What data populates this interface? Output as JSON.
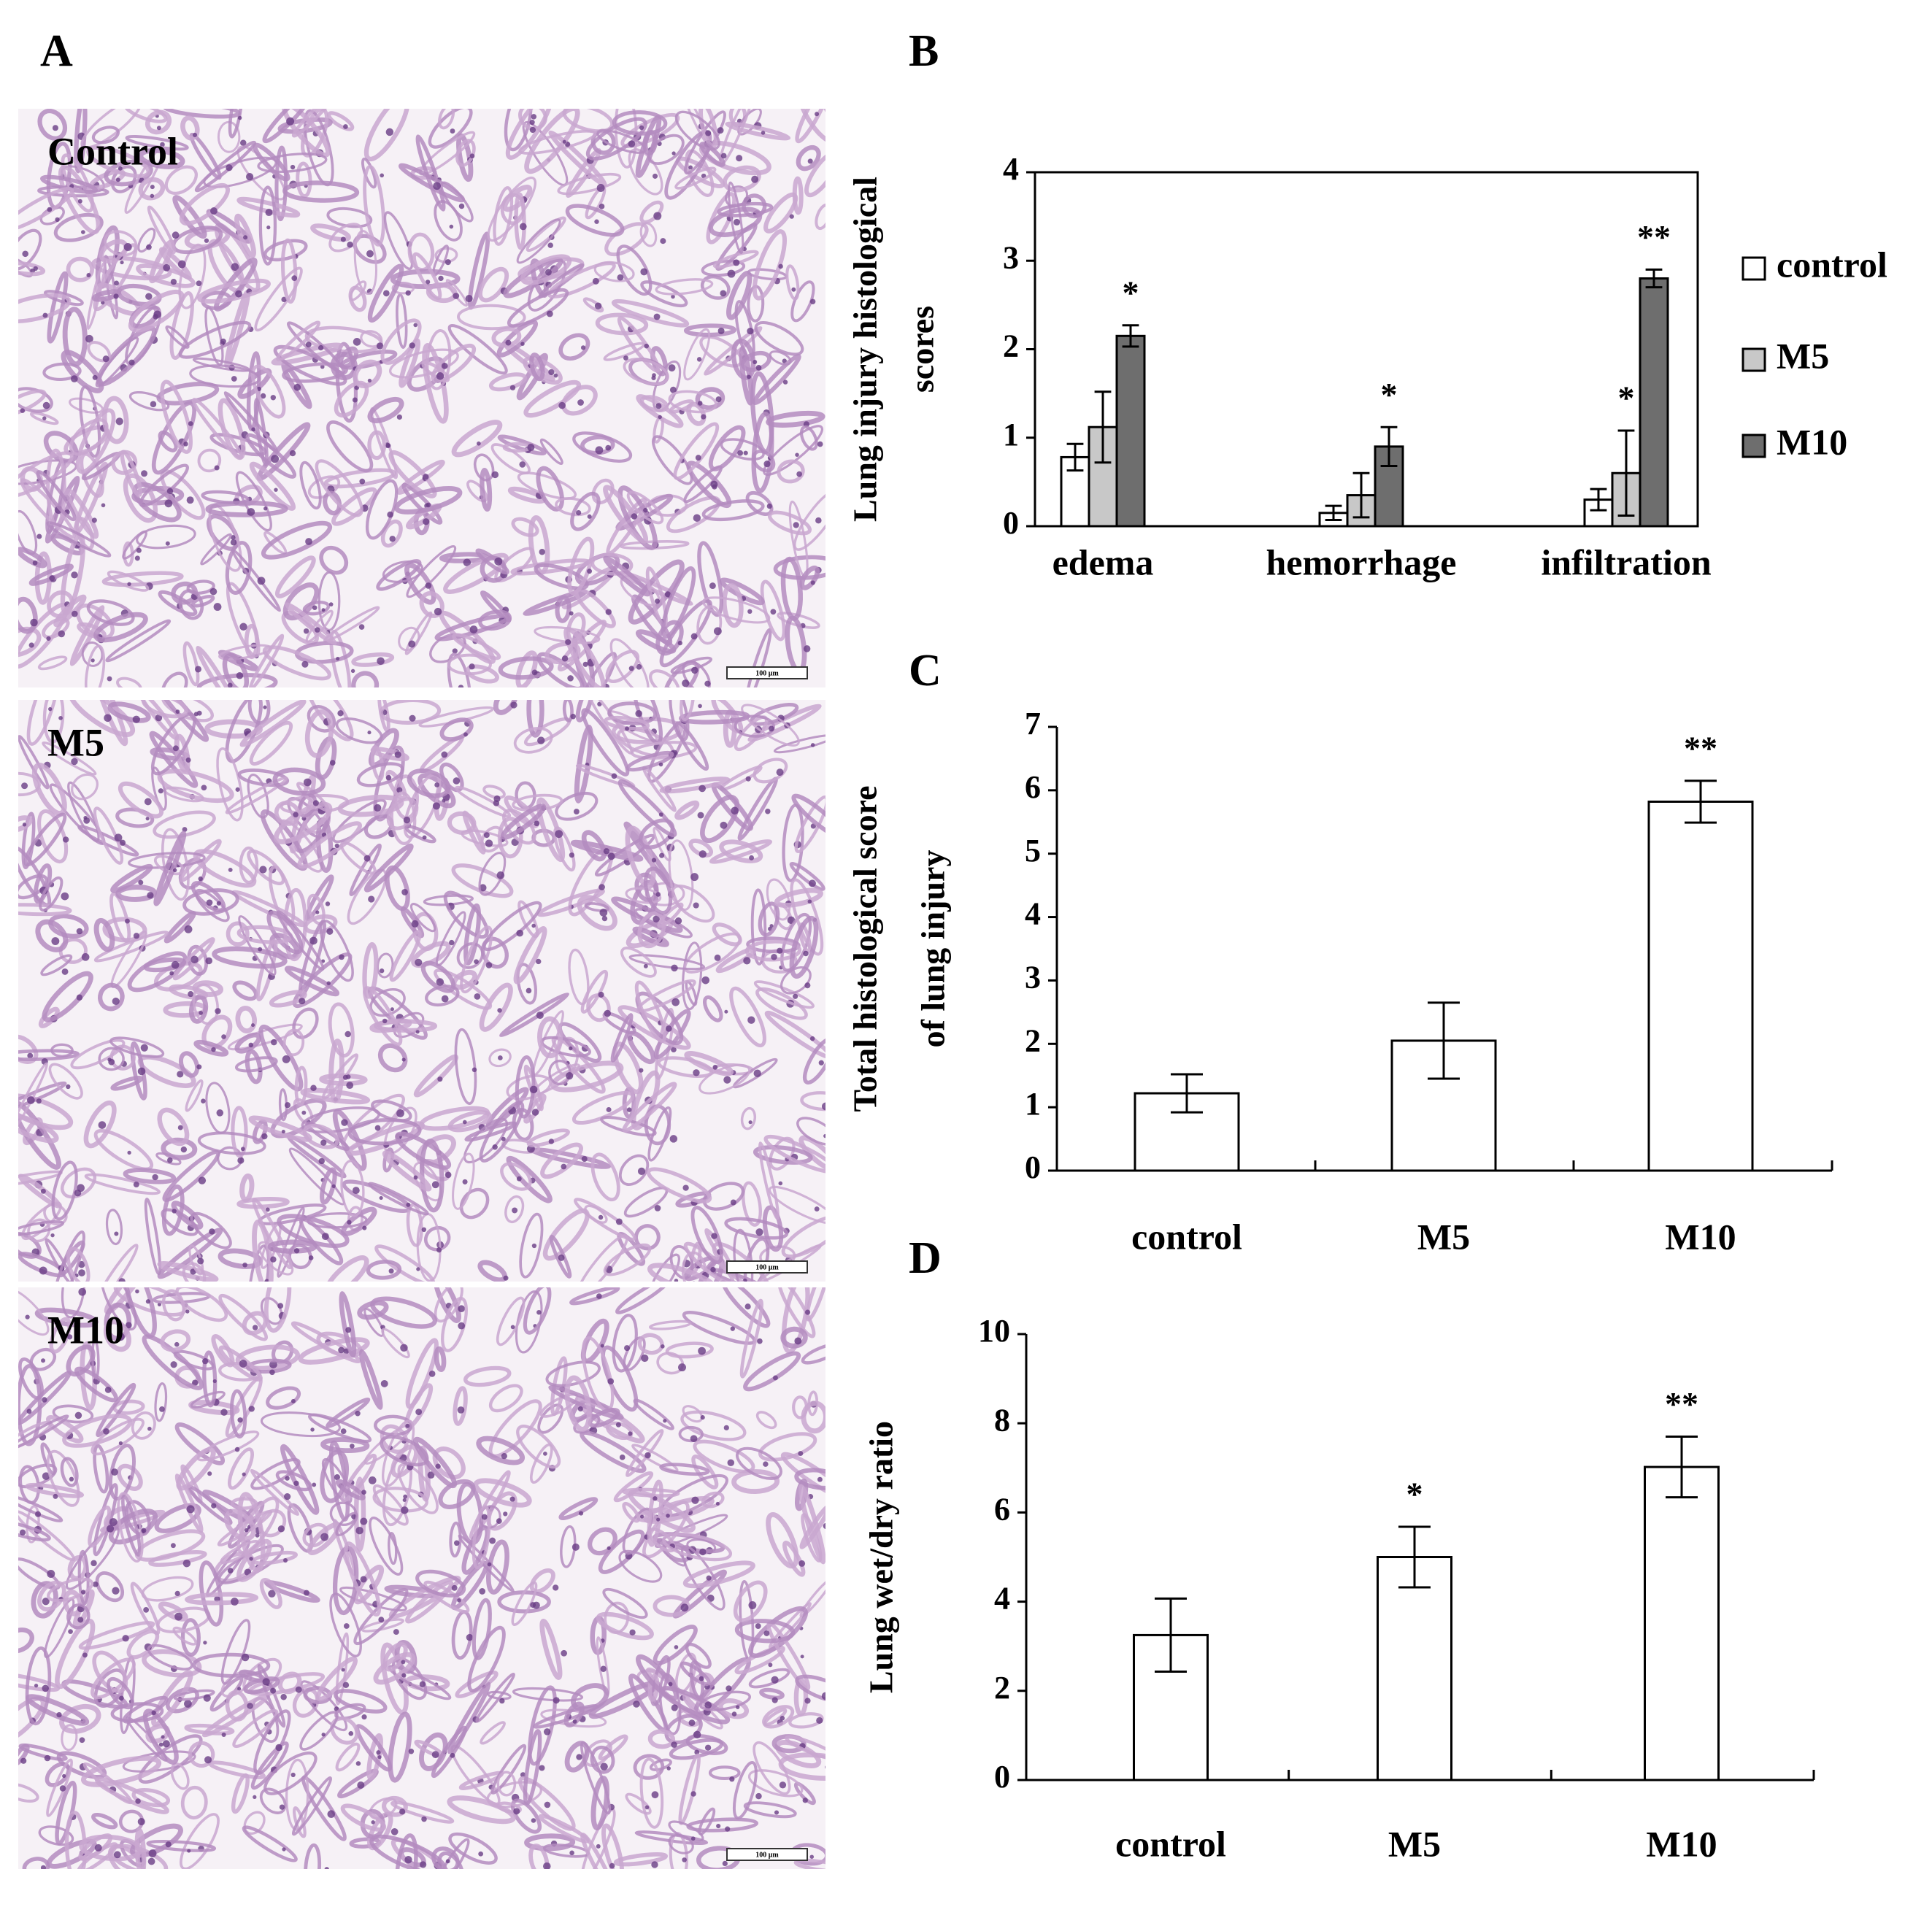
{
  "panel_labels": [
    "A",
    "B",
    "C",
    "D"
  ],
  "micrographs": [
    {
      "label": "Control",
      "scale_bar": "100 μm"
    },
    {
      "label": "M5",
      "scale_bar": "100 μm"
    },
    {
      "label": "M10",
      "scale_bar": "100 μm"
    }
  ],
  "chart_data": [
    {
      "type": "bar",
      "ylabel": [
        "Lung injury histological",
        "scores"
      ],
      "categories": [
        "edema",
        "hemorrhage",
        "infiltration"
      ],
      "series": [
        {
          "name": "control",
          "color": "#ffffff",
          "values": [
            0.78,
            0.15,
            0.3
          ],
          "errors": [
            0.15,
            0.08,
            0.12
          ],
          "annotations": [
            null,
            null,
            null
          ]
        },
        {
          "name": "M5",
          "color": "#c8c8c8",
          "values": [
            1.12,
            0.35,
            0.6
          ],
          "errors": [
            0.4,
            0.25,
            0.48
          ],
          "annotations": [
            null,
            null,
            "*"
          ]
        },
        {
          "name": "M10",
          "color": "#6e6e6e",
          "values": [
            2.15,
            0.9,
            2.8
          ],
          "errors": [
            0.12,
            0.22,
            0.1
          ],
          "annotations": [
            "*",
            "*",
            "**"
          ]
        }
      ],
      "ylim": [
        0,
        4
      ],
      "yticks": [
        0,
        1,
        2,
        3,
        4
      ],
      "frame": true,
      "legend": "right"
    },
    {
      "type": "bar",
      "ylabel": [
        "Total histological score",
        "of lung injury"
      ],
      "categories": [
        "control",
        "M5",
        "M10"
      ],
      "series": [
        {
          "color": "#ffffff",
          "values": [
            1.22,
            2.05,
            5.82
          ],
          "errors": [
            0.3,
            0.6,
            0.33
          ],
          "annotations": [
            null,
            null,
            "**"
          ]
        }
      ],
      "ylim": [
        0,
        7
      ],
      "yticks": [
        0,
        1,
        2,
        3,
        4,
        5,
        6,
        7
      ],
      "frame": false
    },
    {
      "type": "bar",
      "ylabel": [
        "Lung wet/dry ratio"
      ],
      "categories": [
        "control",
        "M5",
        "M10"
      ],
      "series": [
        {
          "color": "#ffffff",
          "values": [
            3.25,
            5.0,
            7.02
          ],
          "errors": [
            0.82,
            0.68,
            0.68
          ],
          "annotations": [
            null,
            "*",
            "**"
          ]
        }
      ],
      "ylim": [
        0,
        10
      ],
      "yticks": [
        0,
        2,
        4,
        6,
        8,
        10
      ],
      "frame": false
    }
  ]
}
